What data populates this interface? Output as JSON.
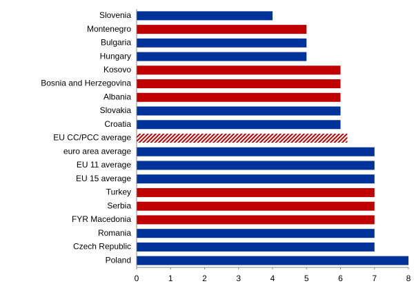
{
  "chart_data": {
    "type": "bar",
    "orientation": "horizontal",
    "categories": [
      "Slovenia",
      "Montenegro",
      "Bulgaria",
      "Hungary",
      "Kosovo",
      "Bosnia and Herzegovina",
      "Albania",
      "Slovakia",
      "Croatia",
      "EU CC/PCC average",
      "euro area average",
      "EU 11 average",
      "EU 15 average",
      "Turkey",
      "Serbia",
      "FYR Macedonia",
      "Romania",
      "Czech Republic",
      "Poland"
    ],
    "values": [
      4,
      5,
      5,
      5,
      6,
      6,
      6,
      6,
      6,
      6.2,
      7,
      7,
      7,
      7,
      7,
      7,
      7,
      7,
      8
    ],
    "colors": [
      "#003399",
      "#c00000",
      "#003399",
      "#003399",
      "#c00000",
      "#c00000",
      "#c00000",
      "#003399",
      "#003399",
      "#c00000",
      "#003399",
      "#003399",
      "#003399",
      "#c00000",
      "#c00000",
      "#c00000",
      "#003399",
      "#003399",
      "#003399"
    ],
    "bar_styles": [
      "solid",
      "solid",
      "solid",
      "solid",
      "solid",
      "solid",
      "solid",
      "solid",
      "solid",
      "hatched",
      "solid",
      "solid",
      "solid",
      "solid",
      "solid",
      "solid",
      "solid",
      "solid",
      "solid"
    ],
    "xlim": [
      0,
      8
    ],
    "xticks": [
      0,
      1,
      2,
      3,
      4,
      5,
      6,
      7,
      8
    ],
    "grid": false
  }
}
